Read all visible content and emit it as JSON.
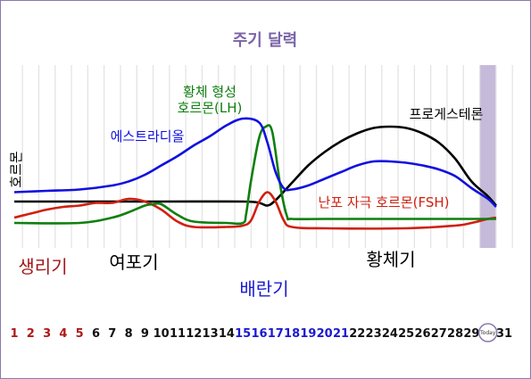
{
  "chart_data": {
    "type": "line",
    "title": "주기 달력",
    "ylabel": "호르몬",
    "x": [
      1,
      2,
      3,
      4,
      5,
      6,
      7,
      8,
      9,
      10,
      11,
      12,
      13,
      14,
      15,
      16,
      17,
      18,
      19,
      20,
      21,
      22,
      23,
      24,
      25,
      26,
      27,
      28,
      29,
      30,
      31
    ],
    "x_tick_labels": [
      "1",
      "2",
      "3",
      "4",
      "5",
      "6",
      "7",
      "8",
      "9",
      "10",
      "11",
      "12",
      "13",
      "14",
      "15",
      "16",
      "17",
      "18",
      "19",
      "20",
      "21",
      "22",
      "23",
      "24",
      "25",
      "26",
      "27",
      "28",
      "29",
      "Today",
      "31"
    ],
    "today_label": "Today",
    "today_day": 30,
    "ylim": [
      0,
      10
    ],
    "grid": true,
    "series": [
      {
        "name": "에스트라디올",
        "color": "#1010e0",
        "points": [
          [
            1,
            3.1
          ],
          [
            3,
            3.2
          ],
          [
            5,
            3.3
          ],
          [
            7,
            3.6
          ],
          [
            8,
            3.9
          ],
          [
            9,
            4.4
          ],
          [
            10,
            5.1
          ],
          [
            11,
            5.8
          ],
          [
            12,
            6.6
          ],
          [
            13,
            7.3
          ],
          [
            14,
            8.1
          ],
          [
            15,
            8.6
          ],
          [
            16,
            8.3
          ],
          [
            16.5,
            6.8
          ],
          [
            17,
            4.6
          ],
          [
            17.5,
            3.4
          ],
          [
            18,
            3.3
          ],
          [
            19,
            3.6
          ],
          [
            20,
            4.1
          ],
          [
            21,
            4.6
          ],
          [
            22,
            5.1
          ],
          [
            23,
            5.4
          ],
          [
            24,
            5.4
          ],
          [
            25,
            5.3
          ],
          [
            26,
            5.1
          ],
          [
            27,
            4.8
          ],
          [
            28,
            4.3
          ],
          [
            29,
            3.4
          ],
          [
            30,
            2.6
          ],
          [
            30.5,
            2.0
          ]
        ]
      },
      {
        "name": "황체 형성 호르몬(LH)",
        "color": "#0f7f0f",
        "points": [
          [
            1,
            0.8
          ],
          [
            5,
            0.8
          ],
          [
            7,
            1.2
          ],
          [
            8,
            1.6
          ],
          [
            9,
            2.1
          ],
          [
            9.5,
            2.2
          ],
          [
            10,
            2.2
          ],
          [
            11,
            1.4
          ],
          [
            12,
            0.9
          ],
          [
            14,
            0.8
          ],
          [
            15,
            0.8
          ],
          [
            15.2,
            1.5
          ],
          [
            15.5,
            4.0
          ],
          [
            16,
            7.2
          ],
          [
            16.4,
            8.0
          ],
          [
            16.8,
            7.6
          ],
          [
            17.3,
            3.5
          ],
          [
            17.7,
            1.3
          ],
          [
            18,
            1.1
          ],
          [
            20,
            1.1
          ],
          [
            25,
            1.1
          ],
          [
            29,
            1.1
          ],
          [
            30.5,
            1.1
          ]
        ]
      },
      {
        "name": "난포 자극 호르몬(FSH)",
        "color": "#d02010",
        "points": [
          [
            1,
            1.2
          ],
          [
            2,
            1.5
          ],
          [
            3,
            1.8
          ],
          [
            4,
            2.0
          ],
          [
            5,
            2.1
          ],
          [
            6,
            2.3
          ],
          [
            7,
            2.3
          ],
          [
            8,
            2.6
          ],
          [
            9,
            2.4
          ],
          [
            10,
            1.8
          ],
          [
            11,
            0.9
          ],
          [
            12,
            0.5
          ],
          [
            14,
            0.5
          ],
          [
            15,
            0.6
          ],
          [
            15.5,
            1.0
          ],
          [
            16,
            2.4
          ],
          [
            16.5,
            3.1
          ],
          [
            17,
            2.4
          ],
          [
            17.5,
            1.0
          ],
          [
            18,
            0.5
          ],
          [
            20,
            0.4
          ],
          [
            25,
            0.4
          ],
          [
            28,
            0.6
          ],
          [
            29,
            0.8
          ],
          [
            30,
            1.1
          ],
          [
            30.5,
            1.2
          ]
        ]
      },
      {
        "name": "프로게스테론",
        "color": "#000000",
        "points": [
          [
            1,
            2.4
          ],
          [
            5,
            2.4
          ],
          [
            10,
            2.4
          ],
          [
            15,
            2.4
          ],
          [
            16,
            2.3
          ],
          [
            16.5,
            2.1
          ],
          [
            17,
            2.5
          ],
          [
            18,
            3.8
          ],
          [
            19,
            5.1
          ],
          [
            20,
            6.1
          ],
          [
            21,
            6.9
          ],
          [
            22,
            7.5
          ],
          [
            23,
            7.9
          ],
          [
            24,
            8.0
          ],
          [
            25,
            7.9
          ],
          [
            26,
            7.5
          ],
          [
            27,
            6.8
          ],
          [
            28,
            5.6
          ],
          [
            29,
            3.9
          ],
          [
            30,
            2.8
          ],
          [
            30.5,
            2.1
          ]
        ]
      }
    ],
    "phases": [
      {
        "label": "생리기",
        "color": "#a01818"
      },
      {
        "label": "여포기",
        "color": "#000000"
      },
      {
        "label": "배란기",
        "color": "#1a1ad0"
      },
      {
        "label": "황체기",
        "color": "#000000"
      }
    ],
    "day_colors": {
      "menstrual": "#b01818",
      "ovulation": "#1a1ad0",
      "normal": "#111111"
    },
    "highlight_color": "#c6bada",
    "title_color": "#7a63a6"
  }
}
